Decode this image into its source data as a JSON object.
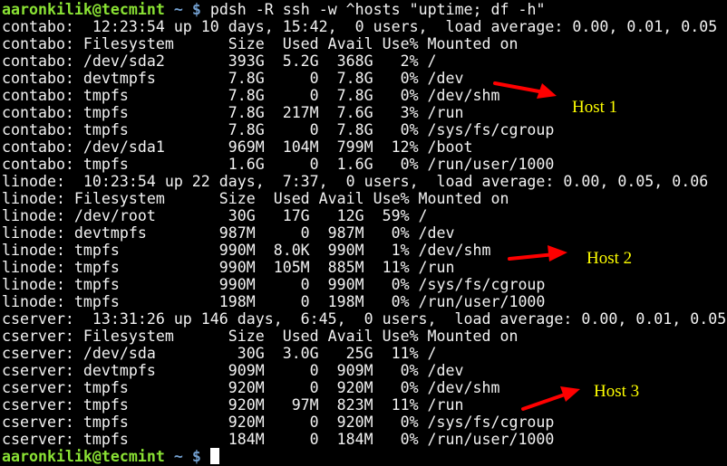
{
  "prompt": {
    "user_host": "aaronkilik@tecmint",
    "path": "~",
    "symbol": "$"
  },
  "command": "pdsh -R ssh -w ^hosts \"uptime; df -h\"",
  "output_lines": [
    "contabo:  12:23:54 up 10 days, 15:42,  0 users,  load average: 0.00, 0.01, 0.05",
    "contabo: Filesystem      Size  Used Avail Use% Mounted on",
    "contabo: /dev/sda2       393G  5.2G  368G   2% /",
    "contabo: devtmpfs        7.8G     0  7.8G   0% /dev",
    "contabo: tmpfs           7.8G     0  7.8G   0% /dev/shm",
    "contabo: tmpfs           7.8G  217M  7.6G   3% /run",
    "contabo: tmpfs           7.8G     0  7.8G   0% /sys/fs/cgroup",
    "contabo: /dev/sda1       969M  104M  799M  12% /boot",
    "contabo: tmpfs           1.6G     0  1.6G   0% /run/user/1000",
    "linode:  10:23:54 up 22 days,  7:37,  0 users,  load average: 0.00, 0.05, 0.06",
    "linode: Filesystem      Size  Used Avail Use% Mounted on",
    "linode: /dev/root        30G   17G   12G  59% /",
    "linode: devtmpfs        987M     0  987M   0% /dev",
    "linode: tmpfs           990M  8.0K  990M   1% /dev/shm",
    "linode: tmpfs           990M  105M  885M  11% /run",
    "linode: tmpfs           990M     0  990M   0% /sys/fs/cgroup",
    "linode: tmpfs           198M     0  198M   0% /run/user/1000",
    "cserver:  13:31:26 up 146 days,  6:45,  0 users,  load average: 0.00, 0.01, 0.05",
    "cserver: Filesystem      Size  Used Avail Use% Mounted on",
    "cserver: /dev/sda         30G  3.0G   25G  11% /",
    "cserver: devtmpfs        909M     0  909M   0% /dev",
    "cserver: tmpfs           920M     0  920M   0% /dev/shm",
    "cserver: tmpfs           920M   97M  823M  11% /run",
    "cserver: tmpfs           920M     0  920M   0% /sys/fs/cgroup",
    "cserver: tmpfs           184M     0  184M   0% /run/user/1000"
  ],
  "annotations": {
    "host1": "Host 1",
    "host2": "Host 2",
    "host3": "Host 3",
    "arrow_color": "#ff0000",
    "label_color": "#ffff00"
  }
}
